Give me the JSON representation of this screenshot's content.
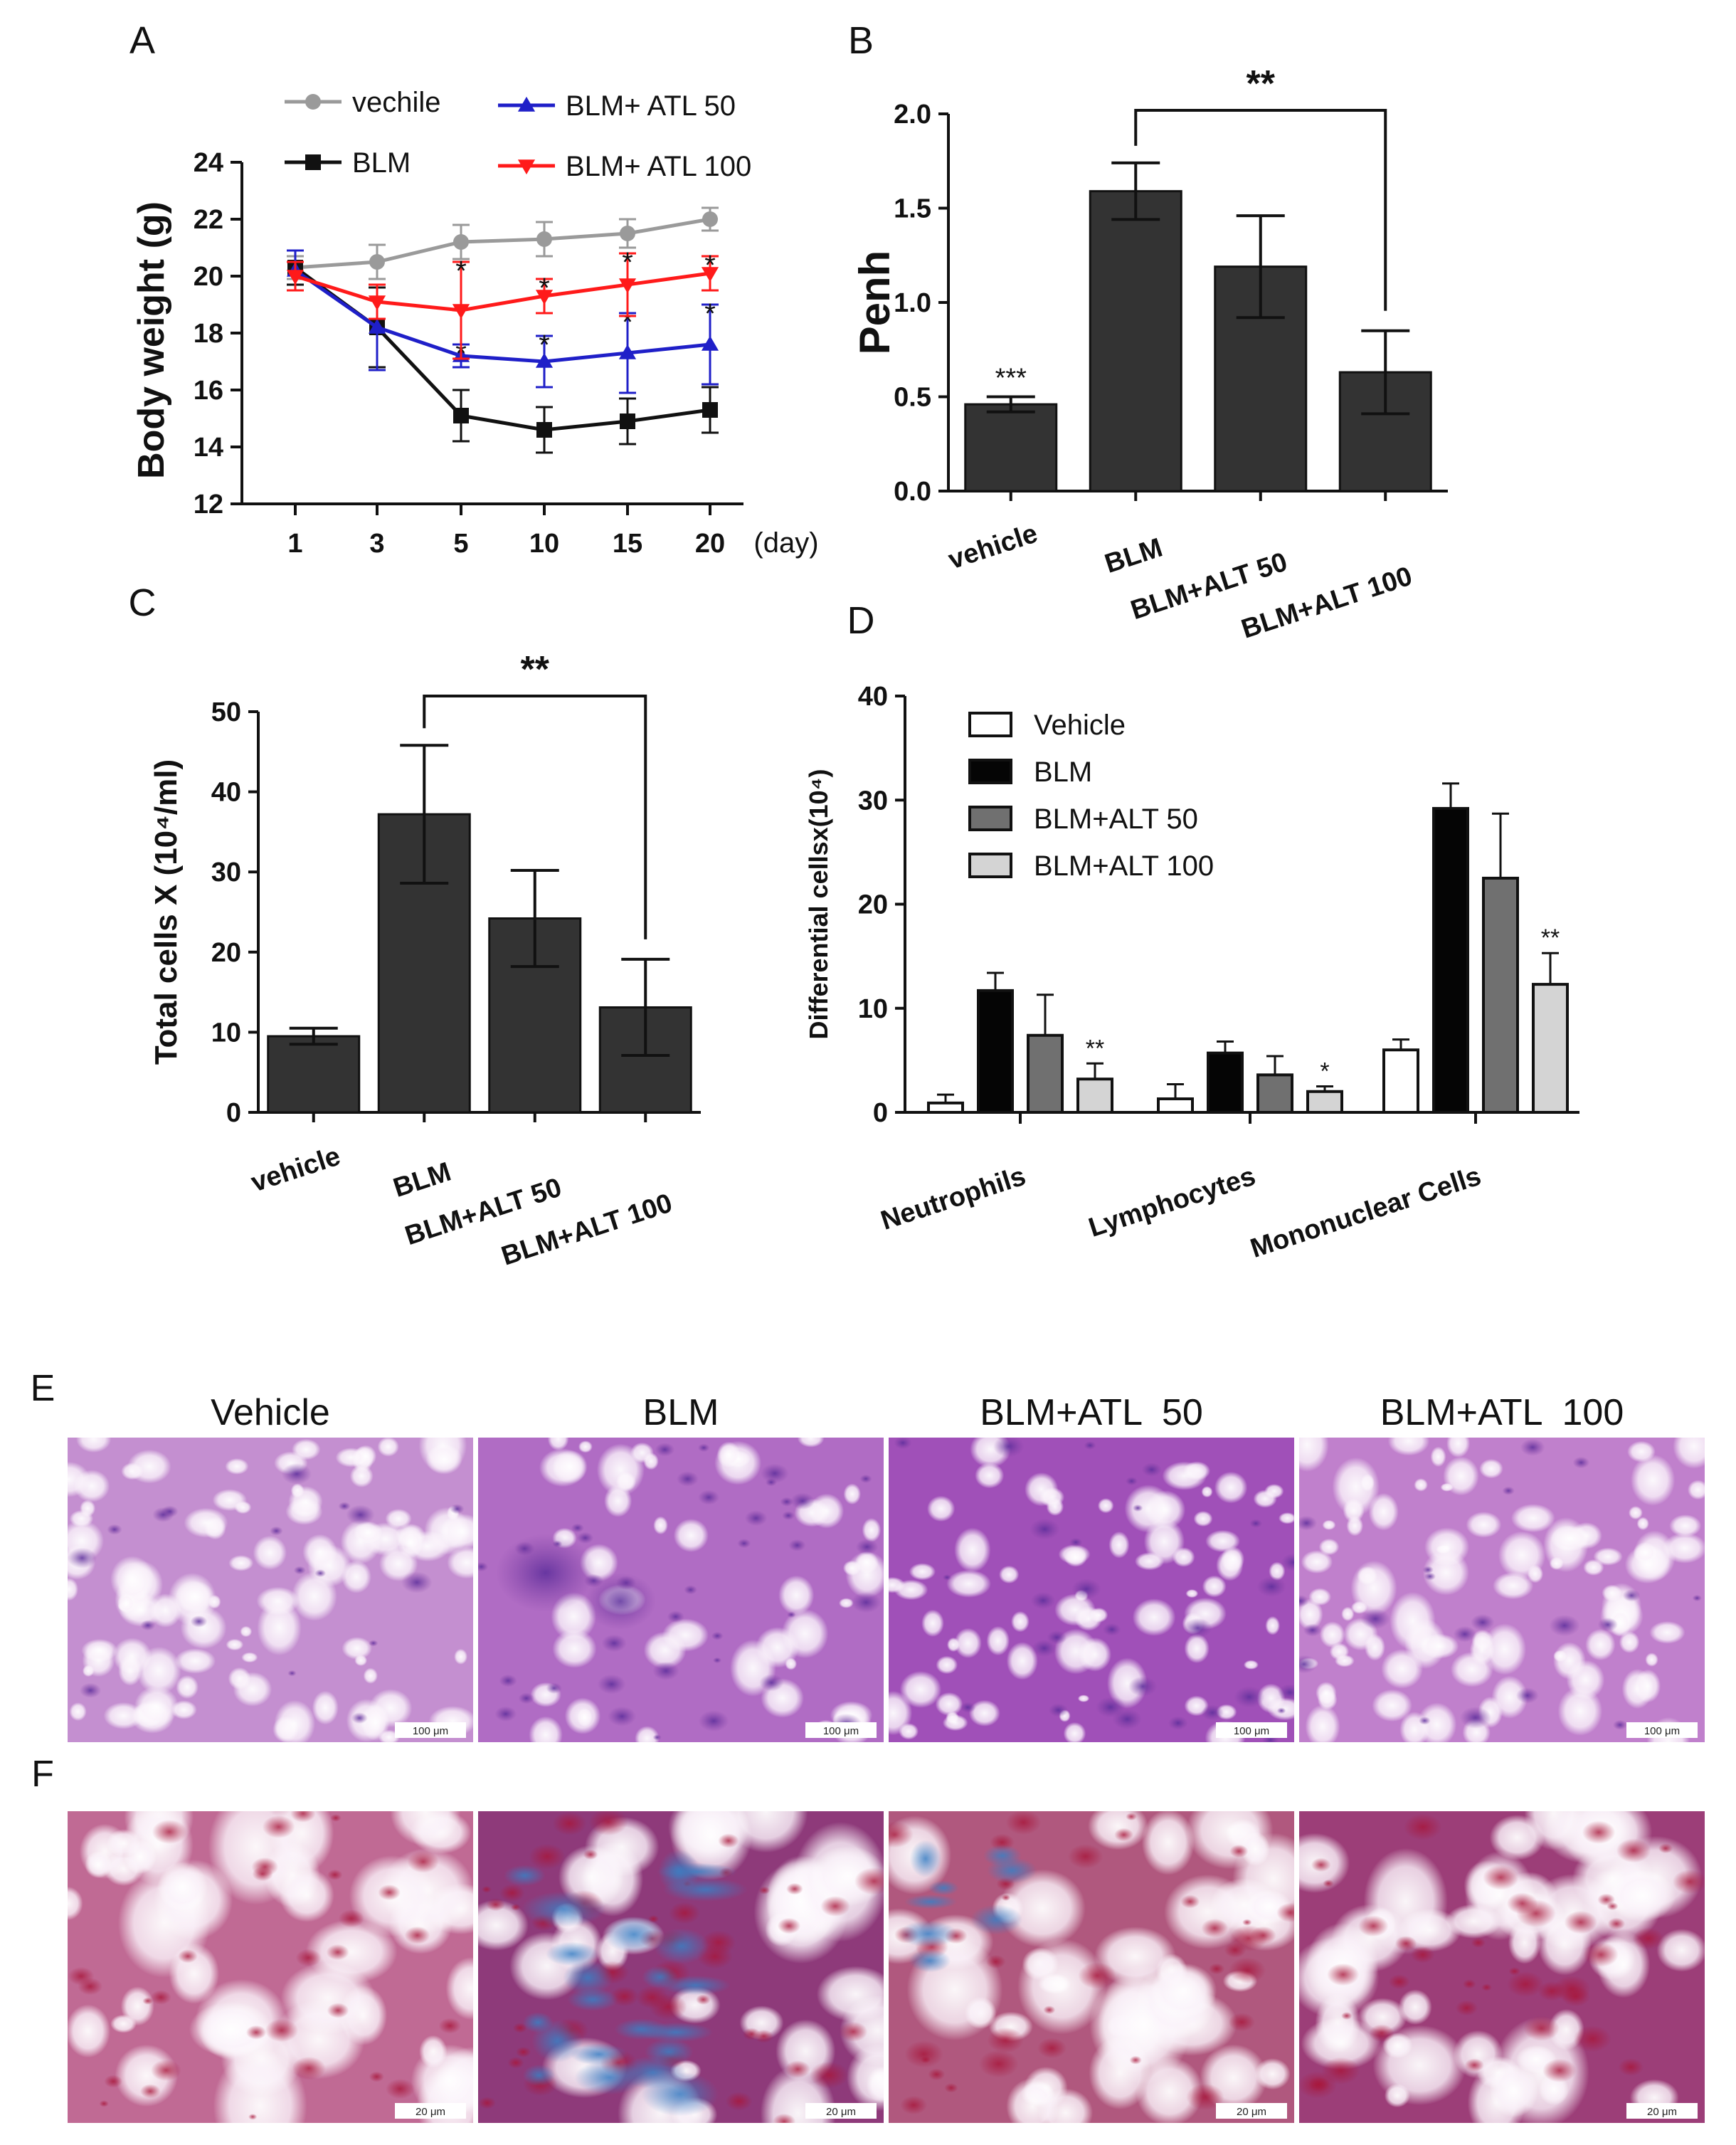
{
  "chart_data": [
    {
      "id": "A",
      "type": "line",
      "panel_label": "A",
      "xlabel": "",
      "x_unit": "(day)",
      "ylabel": "Body weight (g)",
      "categories": [
        "1",
        "3",
        "5",
        "10",
        "15",
        "20"
      ],
      "ylim": [
        12,
        24
      ],
      "yticks": [
        12,
        14,
        16,
        18,
        20,
        22,
        24
      ],
      "legend_position": "top",
      "series": [
        {
          "name": "vechile",
          "color": "#9a9a9a",
          "marker": "circle",
          "values": [
            20.3,
            20.5,
            21.2,
            21.3,
            21.5,
            22.0
          ],
          "errors": [
            0.4,
            0.6,
            0.6,
            0.6,
            0.5,
            0.4
          ],
          "stars": [
            "",
            "",
            "",
            "",
            "",
            ""
          ]
        },
        {
          "name": "BLM",
          "color": "#111111",
          "marker": "square",
          "values": [
            20.3,
            18.2,
            15.1,
            14.6,
            14.9,
            15.3
          ],
          "errors": [
            0.6,
            1.4,
            0.9,
            0.8,
            0.8,
            0.8
          ],
          "stars": [
            "",
            "",
            "",
            "",
            "",
            ""
          ]
        },
        {
          "name": "BLM+ ATL 50",
          "color": "#1f1fc8",
          "marker": "triangle-up",
          "values": [
            20.2,
            18.2,
            17.2,
            17.0,
            17.3,
            17.6
          ],
          "errors": [
            0.7,
            1.5,
            0.4,
            0.9,
            1.4,
            1.4
          ],
          "stars": [
            "",
            "",
            "*",
            "*",
            "*",
            "*"
          ]
        },
        {
          "name": "BLM+ ATL 100",
          "color": "#ff1a1a",
          "marker": "triangle-down",
          "values": [
            20.0,
            19.1,
            18.8,
            19.3,
            19.7,
            20.1
          ],
          "errors": [
            0.5,
            0.6,
            1.7,
            0.6,
            1.1,
            0.6
          ],
          "stars": [
            "",
            "",
            "*",
            "*",
            "*",
            "*"
          ]
        }
      ]
    },
    {
      "id": "B",
      "type": "bar",
      "panel_label": "B",
      "ylabel": "Penh",
      "categories": [
        "vehicle",
        "BLM",
        "BLM+ALT 50",
        "BLM+ALT 100"
      ],
      "values": [
        0.46,
        1.59,
        1.19,
        0.63
      ],
      "errors": [
        0.04,
        0.15,
        0.27,
        0.22
      ],
      "stars": [
        "***",
        "",
        "",
        ""
      ],
      "bracket": {
        "from": 1,
        "to": 3,
        "label": "**"
      },
      "ylim": [
        0,
        2.0
      ],
      "yticks": [
        0.0,
        0.5,
        1.0,
        1.5,
        2.0
      ],
      "ytick_labels": [
        "0.0",
        "0.5",
        "1.0",
        "1.5",
        "2.0"
      ],
      "bar_color": "#333333"
    },
    {
      "id": "C",
      "type": "bar",
      "panel_label": "C",
      "ylabel": "Total cells X (10⁴/ml)",
      "categories": [
        "vehicle",
        "BLM",
        "BLM+ALT 50",
        "BLM+ALT 100"
      ],
      "values": [
        9.5,
        37.2,
        24.2,
        13.1
      ],
      "errors": [
        1.0,
        8.6,
        6.0,
        6.0
      ],
      "stars": [
        "",
        "",
        "",
        ""
      ],
      "bracket": {
        "from": 1,
        "to": 3,
        "label": "**"
      },
      "ylim": [
        0,
        50
      ],
      "yticks": [
        0,
        10,
        20,
        30,
        40,
        50
      ],
      "ytick_labels": [
        "0",
        "10",
        "20",
        "30",
        "40",
        "50"
      ],
      "bar_color": "#333333"
    },
    {
      "id": "D",
      "type": "bar",
      "panel_label": "D",
      "ylabel": "Differential cellsx(10⁴)",
      "categories": [
        "Neutrophils",
        "Lymphocytes",
        "Mononuclear Cells"
      ],
      "ylim": [
        0,
        40
      ],
      "yticks": [
        0,
        10,
        20,
        30,
        40
      ],
      "ytick_labels": [
        "0",
        "10",
        "20",
        "30",
        "40"
      ],
      "legend_position": "top",
      "series": [
        {
          "name": "Vehicle",
          "color": "#ffffff",
          "values": [
            0.9,
            1.3,
            6.0
          ],
          "errors": [
            0.8,
            1.4,
            1.0
          ],
          "stars": [
            "",
            "",
            ""
          ]
        },
        {
          "name": "BLM",
          "color": "#050505",
          "values": [
            11.7,
            5.7,
            29.2
          ],
          "errors": [
            1.7,
            1.1,
            2.4
          ],
          "stars": [
            "",
            "",
            ""
          ]
        },
        {
          "name": "BLM+ALT 50",
          "color": "#707070",
          "values": [
            7.4,
            3.6,
            22.5
          ],
          "errors": [
            3.9,
            1.8,
            6.2
          ],
          "stars": [
            "",
            "",
            ""
          ]
        },
        {
          "name": "BLM+ALT 100",
          "color": "#d4d4d4",
          "values": [
            3.2,
            2.0,
            12.3
          ],
          "errors": [
            1.5,
            0.5,
            3.0
          ],
          "stars": [
            "**",
            "*",
            "**"
          ]
        }
      ]
    }
  ],
  "histology": {
    "panel_e": {
      "label": "E",
      "columns": [
        "Vehicle",
        "BLM",
        "BLM+ATL  50",
        "BLM+ATL  100"
      ],
      "scale_bar": "100 μm"
    },
    "panel_f": {
      "label": "F",
      "scale_bar": "20 μm"
    }
  }
}
